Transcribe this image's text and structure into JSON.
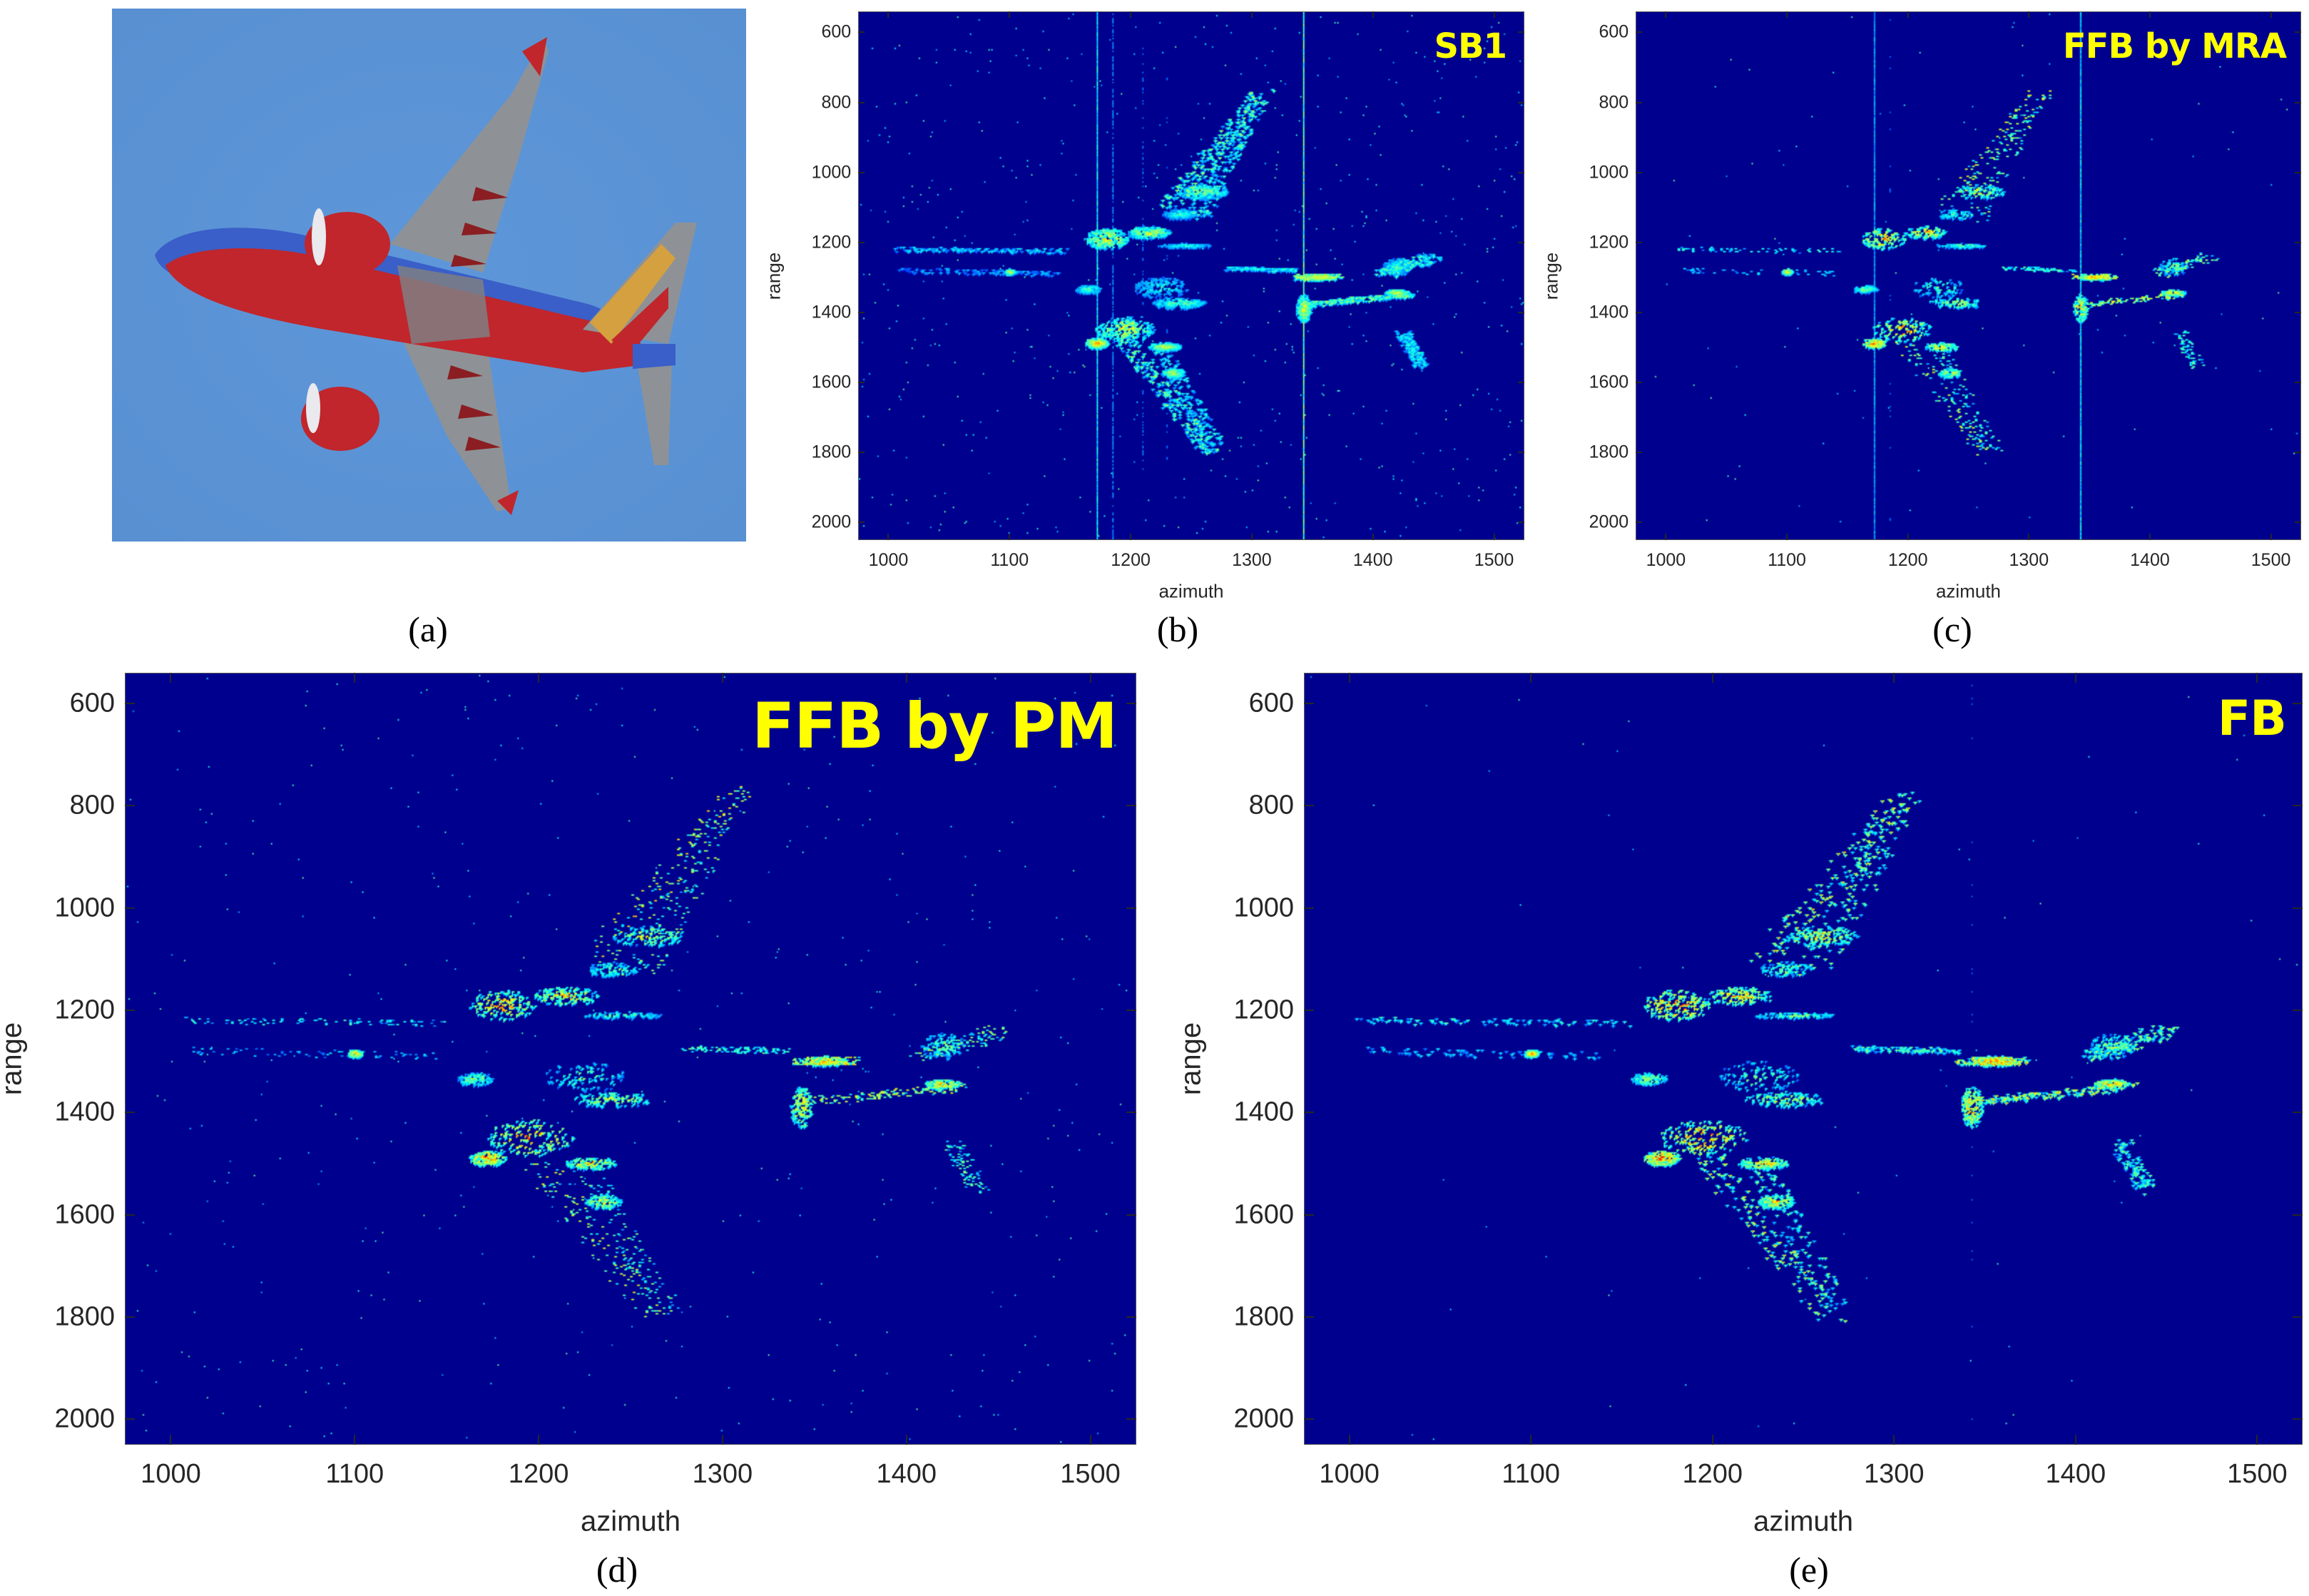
{
  "figure": {
    "panel_labels": {
      "a": "(a)",
      "b": "(b)",
      "c": "(c)",
      "d": "(d)",
      "e": "(e)"
    },
    "photo": {
      "description": "airliner photographed from below against blue sky",
      "sky_color": "#5b94d6",
      "fuselage_color": "#c0262b",
      "belly_blue": "#3a5fc8",
      "wing_gray": "#8e9296"
    }
  },
  "chart_data": [
    {
      "id": "b",
      "type": "heatmap",
      "title": "SB1",
      "xlabel": "azimuth",
      "ylabel": "range",
      "xlim": [
        975,
        1525
      ],
      "ylim": [
        2050,
        540
      ],
      "xticks": [
        1000,
        1100,
        1200,
        1300,
        1400,
        1500
      ],
      "yticks": [
        600,
        800,
        1000,
        1200,
        1400,
        1600,
        1800,
        2000
      ],
      "colormap": "jet",
      "background": "#00008f",
      "style": {
        "noise": 0.9,
        "streaks": 1.0,
        "blur": 1.0,
        "density": 1.25,
        "peak": 0.75
      }
    },
    {
      "id": "c",
      "type": "heatmap",
      "title": "FFB by MRA",
      "xlabel": "azimuth",
      "ylabel": "range",
      "xlim": [
        975,
        1525
      ],
      "ylim": [
        2050,
        540
      ],
      "xticks": [
        1000,
        1100,
        1200,
        1300,
        1400,
        1500
      ],
      "yticks": [
        600,
        800,
        1000,
        1200,
        1400,
        1600,
        1800,
        2000
      ],
      "colormap": "jet",
      "background": "#00008f",
      "style": {
        "noise": 0.15,
        "streaks": 0.7,
        "blur": 0.4,
        "density": 0.55,
        "peak": 0.9
      }
    },
    {
      "id": "d",
      "type": "heatmap",
      "title": "FFB by PM",
      "xlabel": "azimuth",
      "ylabel": "range",
      "xlim": [
        975,
        1525
      ],
      "ylim": [
        2050,
        540
      ],
      "xticks": [
        1000,
        1100,
        1200,
        1300,
        1400,
        1500
      ],
      "yticks": [
        600,
        800,
        1000,
        1200,
        1400,
        1600,
        1800,
        2000
      ],
      "colormap": "jet",
      "background": "#00008f",
      "style": {
        "noise": 0.3,
        "streaks": 0.15,
        "blur": 0.5,
        "density": 0.8,
        "peak": 0.95
      }
    },
    {
      "id": "e",
      "type": "heatmap",
      "title": "FB",
      "xlabel": "azimuth",
      "ylabel": "range",
      "xlim": [
        975,
        1525
      ],
      "ylim": [
        2050,
        540
      ],
      "xticks": [
        1000,
        1100,
        1200,
        1300,
        1400,
        1500
      ],
      "yticks": [
        600,
        800,
        1000,
        1200,
        1400,
        1600,
        1800,
        2000
      ],
      "colormap": "jet",
      "background": "#00008f",
      "style": {
        "noise": 0.05,
        "streaks": 0.25,
        "blur": 0.6,
        "density": 0.9,
        "peak": 1.0
      }
    }
  ],
  "target_features": {
    "note": "scattering centers (azimuth, range) forming the aircraft shape, shared by all four images",
    "segments": [
      {
        "part": "upper-wing-leading",
        "from": [
          1230,
          1100
        ],
        "to": [
          1310,
          770
        ],
        "width": 10,
        "intensity": 0.75
      },
      {
        "part": "upper-wing-trailing",
        "from": [
          1255,
          1130
        ],
        "to": [
          1300,
          820
        ],
        "width": 10,
        "intensity": 0.6
      },
      {
        "part": "lower-wing-leading",
        "from": [
          1195,
          1480
        ],
        "to": [
          1265,
          1800
        ],
        "width": 9,
        "intensity": 0.7
      },
      {
        "part": "lower-wing-trailing",
        "from": [
          1225,
          1500
        ],
        "to": [
          1270,
          1790
        ],
        "width": 8,
        "intensity": 0.55
      },
      {
        "part": "fuselage-front",
        "from": [
          1005,
          1220
        ],
        "to": [
          1150,
          1225
        ],
        "width": 5,
        "intensity": 0.45
      },
      {
        "part": "fuselage-front-2",
        "from": [
          1010,
          1280
        ],
        "to": [
          1140,
          1290
        ],
        "width": 6,
        "intensity": 0.35
      },
      {
        "part": "fuselage-rear",
        "from": [
          1280,
          1275
        ],
        "to": [
          1335,
          1280
        ],
        "width": 4,
        "intensity": 0.5
      },
      {
        "part": "upper-stabilizer",
        "from": [
          1410,
          1290
        ],
        "to": [
          1450,
          1240
        ],
        "width": 9,
        "intensity": 0.6
      },
      {
        "part": "lower-stabilizer",
        "from": [
          1425,
          1460
        ],
        "to": [
          1440,
          1555
        ],
        "width": 6,
        "intensity": 0.5
      },
      {
        "part": "tail-row-1",
        "from": [
          1340,
          1300
        ],
        "to": [
          1370,
          1300
        ],
        "width": 6,
        "intensity": 0.75
      },
      {
        "part": "tail-row-2",
        "from": [
          1345,
          1380
        ],
        "to": [
          1430,
          1350
        ],
        "width": 6,
        "intensity": 0.7
      }
    ],
    "blobs": [
      {
        "part": "upper-engine",
        "at": [
          1180,
          1190
        ],
        "rx": 18,
        "ry": 30,
        "intensity": 1.0
      },
      {
        "part": "upper-engine-2",
        "at": [
          1215,
          1172
        ],
        "rx": 18,
        "ry": 18,
        "intensity": 0.9
      },
      {
        "part": "upper-flap",
        "at": [
          1260,
          1055
        ],
        "rx": 20,
        "ry": 20,
        "intensity": 0.8
      },
      {
        "part": "upper-root",
        "at": [
          1240,
          1120
        ],
        "rx": 14,
        "ry": 15,
        "intensity": 0.6
      },
      {
        "part": "wing-root-line",
        "at": [
          1245,
          1210
        ],
        "rx": 22,
        "ry": 6,
        "intensity": 0.6
      },
      {
        "part": "center-1",
        "at": [
          1225,
          1330
        ],
        "rx": 22,
        "ry": 30,
        "intensity": 0.6
      },
      {
        "part": "center-2",
        "at": [
          1240,
          1375
        ],
        "rx": 22,
        "ry": 15,
        "intensity": 0.75
      },
      {
        "part": "left-nacelle",
        "at": [
          1165,
          1335
        ],
        "rx": 10,
        "ry": 12,
        "intensity": 0.65
      },
      {
        "part": "lower-engine",
        "at": [
          1195,
          1450
        ],
        "rx": 24,
        "ry": 35,
        "intensity": 1.0
      },
      {
        "part": "lower-engine-2",
        "at": [
          1172,
          1490
        ],
        "rx": 10,
        "ry": 15,
        "intensity": 1.0
      },
      {
        "part": "lower-flap",
        "at": [
          1228,
          1500
        ],
        "rx": 14,
        "ry": 12,
        "intensity": 0.85
      },
      {
        "part": "lower-flap-2",
        "at": [
          1235,
          1575
        ],
        "rx": 10,
        "ry": 14,
        "intensity": 0.8
      },
      {
        "part": "nose-point",
        "at": [
          1100,
          1285
        ],
        "rx": 4,
        "ry": 8,
        "intensity": 0.8
      },
      {
        "part": "tail-center",
        "at": [
          1343,
          1390
        ],
        "rx": 6,
        "ry": 40,
        "intensity": 0.9
      },
      {
        "part": "tail-top",
        "at": [
          1355,
          1300
        ],
        "rx": 12,
        "ry": 10,
        "intensity": 0.9
      },
      {
        "part": "tail-stab",
        "at": [
          1420,
          1345
        ],
        "rx": 10,
        "ry": 10,
        "intensity": 0.85
      },
      {
        "part": "tail-upper",
        "at": [
          1420,
          1270
        ],
        "rx": 12,
        "ry": 25,
        "intensity": 0.6
      }
    ],
    "vertical_streaks": [
      {
        "azimuth": 1172,
        "from": 540,
        "to": 2050,
        "intensity": 0.5
      },
      {
        "azimuth": 1343,
        "from": 540,
        "to": 2050,
        "intensity": 0.7
      },
      {
        "azimuth": 1185,
        "from": 540,
        "to": 2050,
        "intensity": 0.25
      },
      {
        "azimuth": 1210,
        "from": 600,
        "to": 1900,
        "intensity": 0.2
      },
      {
        "azimuth": 1230,
        "from": 600,
        "to": 1900,
        "intensity": 0.18
      }
    ]
  }
}
